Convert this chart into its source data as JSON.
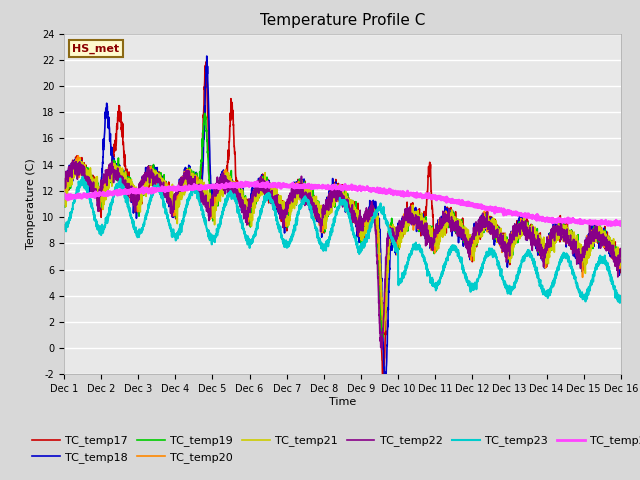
{
  "title": "Temperature Profile C",
  "xlabel": "Time",
  "ylabel": "Temperature (C)",
  "ylim": [
    -2,
    24
  ],
  "xlim": [
    0,
    15
  ],
  "annotation_text": "HS_met",
  "series": {
    "TC_temp17": {
      "color": "#CC0000",
      "lw": 1.2
    },
    "TC_temp18": {
      "color": "#0000CC",
      "lw": 1.2
    },
    "TC_temp19": {
      "color": "#00CC00",
      "lw": 1.2
    },
    "TC_temp20": {
      "color": "#FF8800",
      "lw": 1.2
    },
    "TC_temp21": {
      "color": "#CCCC00",
      "lw": 1.2
    },
    "TC_temp22": {
      "color": "#880088",
      "lw": 1.2
    },
    "TC_temp23": {
      "color": "#00CCCC",
      "lw": 1.5
    },
    "TC_temp24": {
      "color": "#FF44FF",
      "lw": 2.0
    }
  },
  "xtick_labels": [
    "Dec 1",
    "Dec 2",
    "Dec 3",
    "Dec 4",
    "Dec 5",
    "Dec 6",
    "Dec 7",
    "Dec 8",
    "Dec 9",
    "Dec 10",
    "Dec 11",
    "Dec 12",
    "Dec 13",
    "Dec 14",
    "Dec 15",
    "Dec 16"
  ],
  "xtick_positions": [
    0,
    1,
    2,
    3,
    4,
    5,
    6,
    7,
    8,
    9,
    10,
    11,
    12,
    13,
    14,
    15
  ],
  "ytick_positions": [
    -2,
    0,
    2,
    4,
    6,
    8,
    10,
    12,
    14,
    16,
    18,
    20,
    22,
    24
  ],
  "background_color": "#E8E8E8",
  "grid_color": "#FFFFFF",
  "title_fontsize": 11,
  "axis_label_fontsize": 8,
  "tick_fontsize": 7,
  "legend_fontsize": 8
}
